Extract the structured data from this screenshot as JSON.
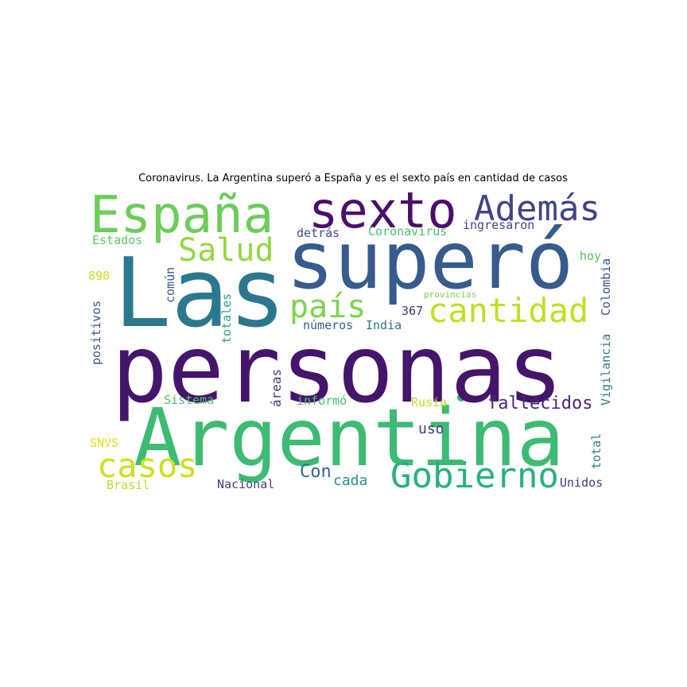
{
  "figure": {
    "title": "Coronavirus. La Argentina superó a España y es el sexto país en cantidad de casos"
  },
  "words": [
    {
      "text": "personas",
      "color": "#45146b"
    },
    {
      "text": "Argentina",
      "color": "#3dbb72"
    },
    {
      "text": "Las",
      "color": "#2b788e"
    },
    {
      "text": "superó",
      "color": "#365b8c"
    },
    {
      "text": "España",
      "color": "#6ccd5a"
    },
    {
      "text": "sexto",
      "color": "#4b0f6b"
    },
    {
      "text": "Además",
      "color": "#414487"
    },
    {
      "text": "Salud",
      "color": "#93d741"
    },
    {
      "text": "país",
      "color": "#7ed34f"
    },
    {
      "text": "cantidad",
      "color": "#c2df23"
    },
    {
      "text": "casos",
      "color": "#cbe11e"
    },
    {
      "text": "Gobierno",
      "color": "#2ab07f"
    },
    {
      "text": "fallecidos",
      "color": "#482878"
    },
    {
      "text": "Con",
      "color": "#31688e"
    },
    {
      "text": "cada",
      "color": "#2a8f8c"
    },
    {
      "text": "uso",
      "color": "#453781"
    },
    {
      "text": "Estados",
      "color": "#5ec962"
    },
    {
      "text": "890",
      "color": "#c8e020"
    },
    {
      "text": "común",
      "color": "#39558c"
    },
    {
      "text": "positivos",
      "color": "#3b528b"
    },
    {
      "text": "totales",
      "color": "#2a9e89"
    },
    {
      "text": "detrás",
      "color": "#3e4c8a"
    },
    {
      "text": "Coronavirus",
      "color": "#4ac16d"
    },
    {
      "text": "ingresaron",
      "color": "#3f4788"
    },
    {
      "text": "hoy",
      "color": "#57c665"
    },
    {
      "text": "Colombia",
      "color": "#3a548c"
    },
    {
      "text": "provincias",
      "color": "#7ad151"
    },
    {
      "text": "367",
      "color": "#472f7d"
    },
    {
      "text": "números",
      "color": "#35608d"
    },
    {
      "text": "India",
      "color": "#2e6f8e"
    },
    {
      "text": "áreas",
      "color": "#443983"
    },
    {
      "text": "Vigilancia",
      "color": "#3e758d"
    },
    {
      "text": "Sistema",
      "color": "#50c46a"
    },
    {
      "text": "informó",
      "color": "#48c16e"
    },
    {
      "text": "Rusia",
      "color": "#bddf26"
    },
    {
      "text": "total",
      "color": "#297b8e"
    },
    {
      "text": "SNVS",
      "color": "#e2e418"
    },
    {
      "text": "Brasil",
      "color": "#b8de29"
    },
    {
      "text": "Nacional",
      "color": "#433e85"
    },
    {
      "text": "Unidos",
      "color": "#453882"
    }
  ]
}
